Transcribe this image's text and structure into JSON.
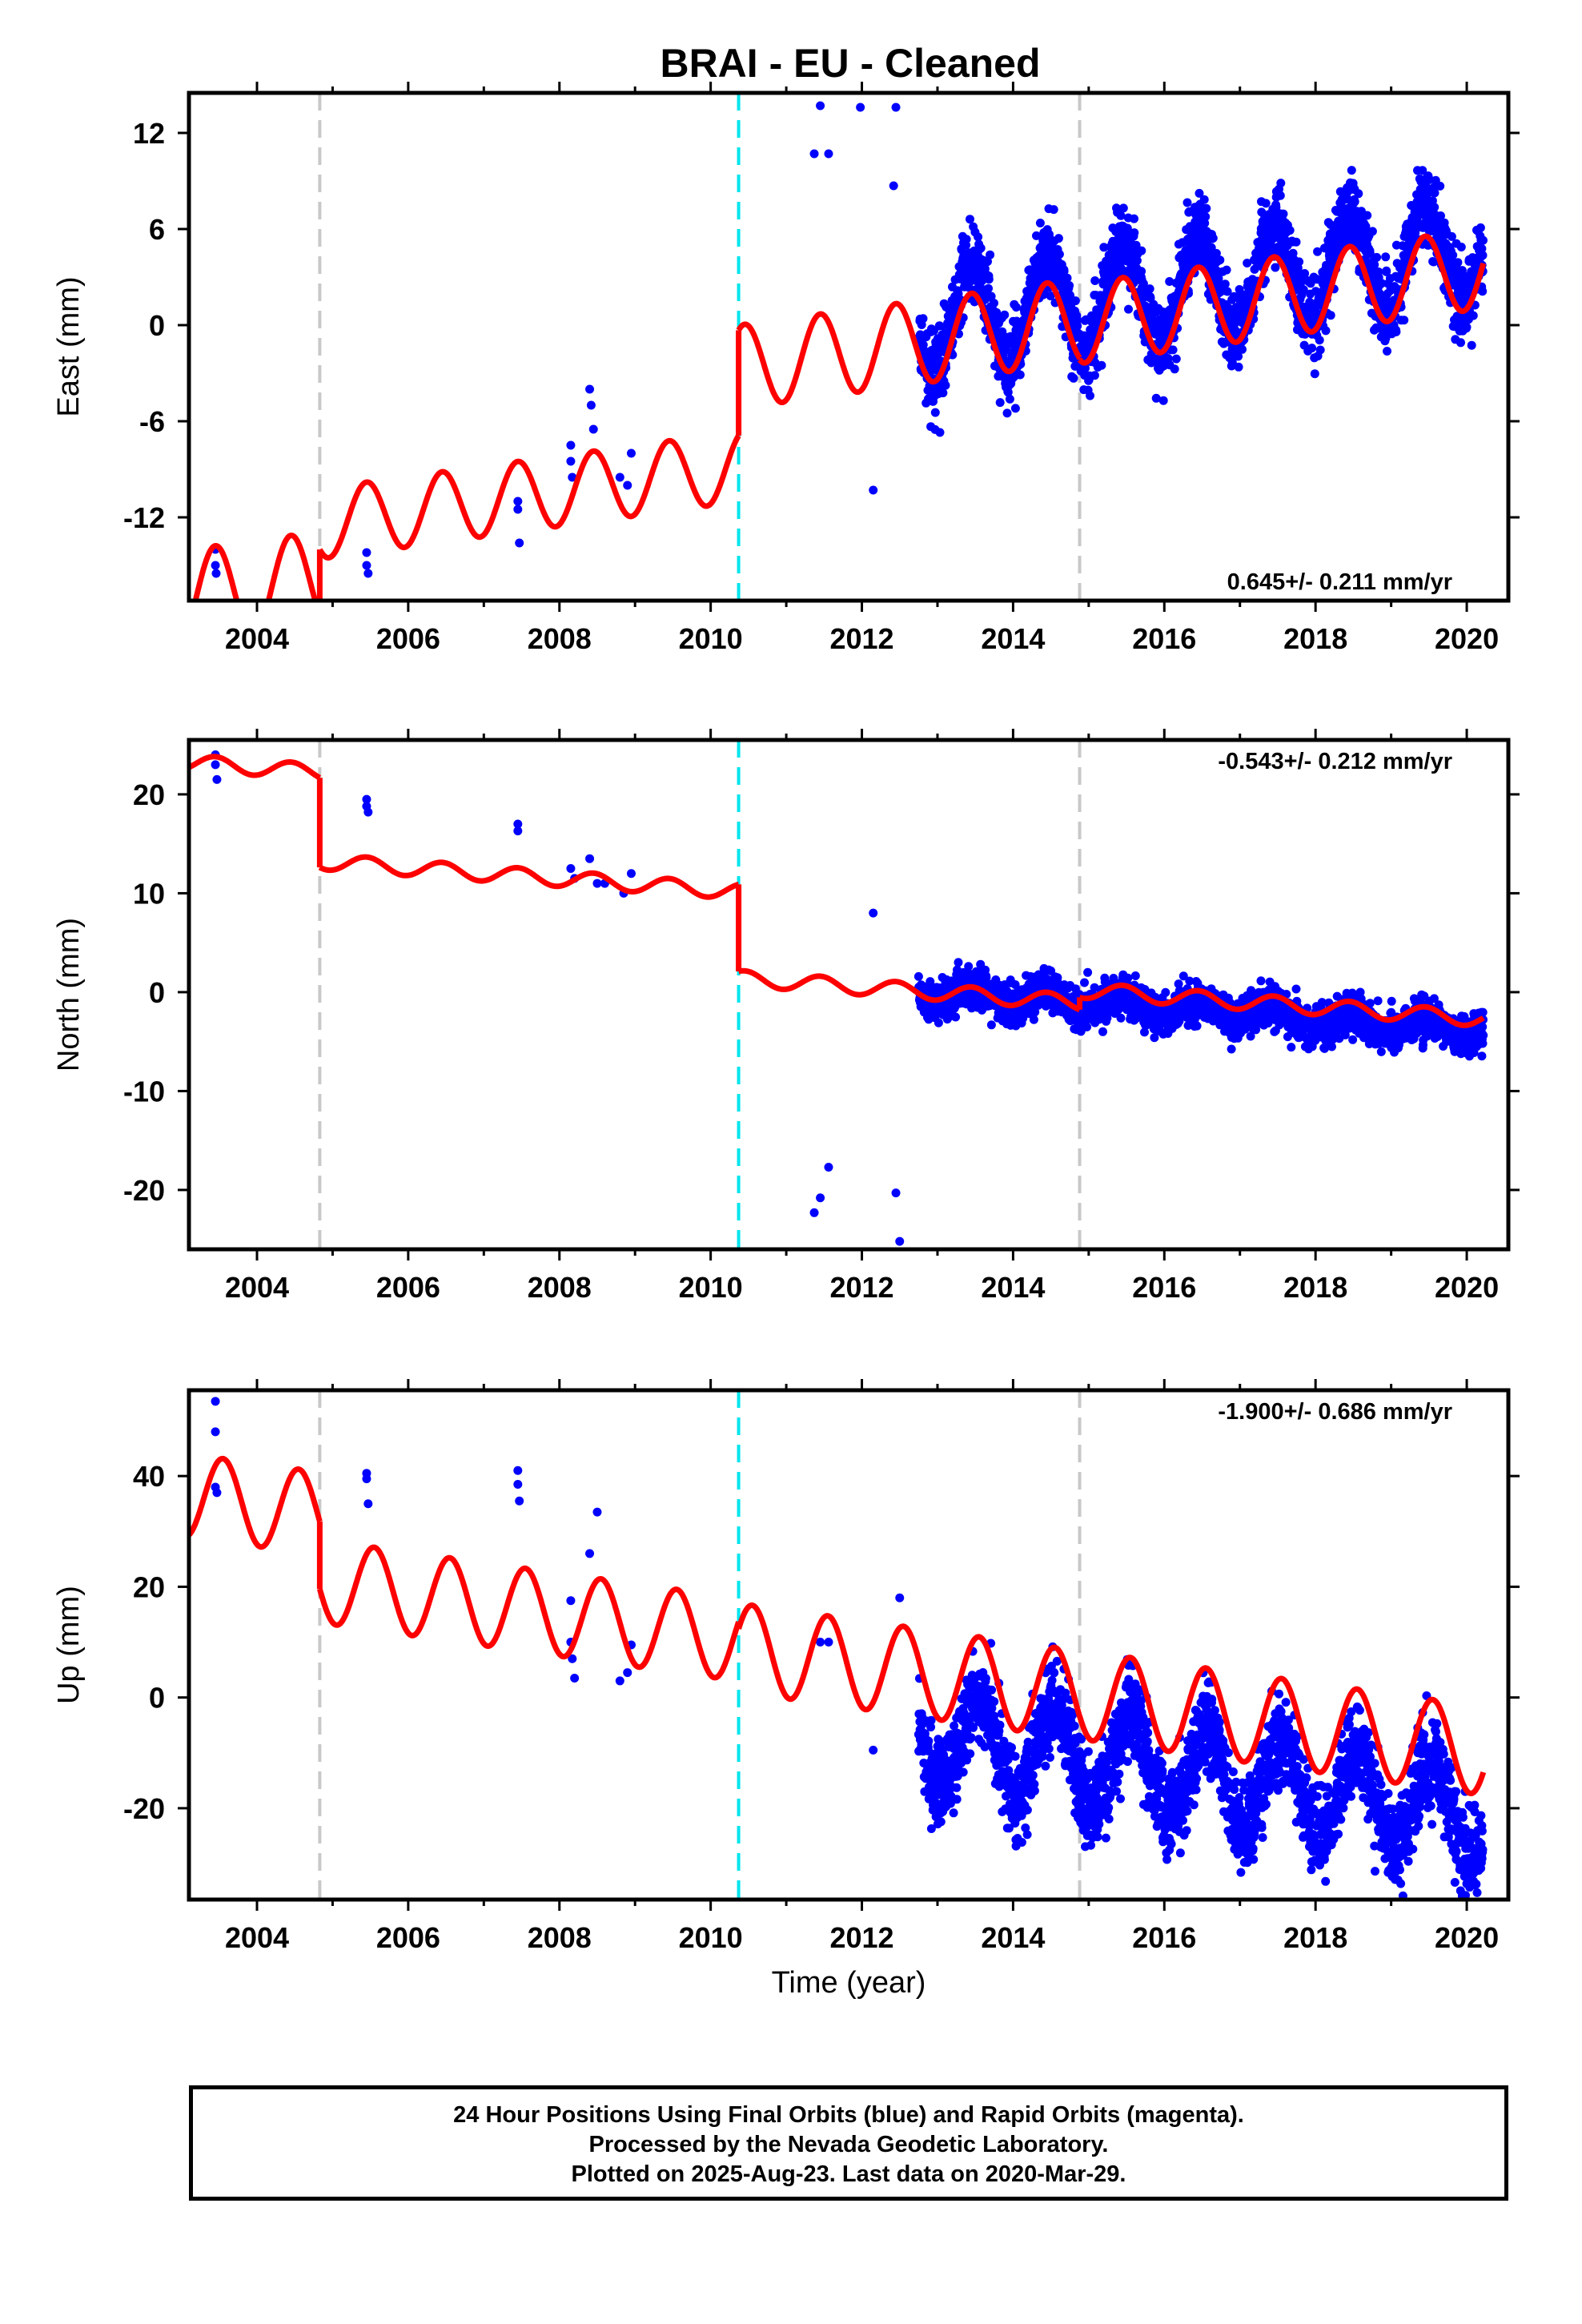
{
  "title": "BRAI  - EU - Cleaned",
  "x_axis_label": "Time (year)",
  "footer_lines": [
    "24 Hour Positions Using Final Orbits (blue) and Rapid Orbits (magenta).",
    "Processed by the Nevada Geodetic Laboratory.",
    "Plotted on 2025-Aug-23. Last data on 2020-Mar-29."
  ],
  "colors": {
    "data": "#0000ff",
    "model": "#ff0000",
    "offset_equipment": "#c8c8c8",
    "offset_earthquake": "#00e5ee"
  },
  "chart_data": [
    {
      "type": "scatter",
      "name": "East",
      "ylabel": "East (mm)",
      "rate_label": "0.645+/- 0.211 mm/yr",
      "xlim": [
        2003.1,
        2020.55
      ],
      "ylim": [
        -17.2,
        14.5
      ],
      "yticks": [
        -12,
        -6,
        0,
        6,
        12
      ],
      "ytick_labels": [
        "-12",
        "-6",
        "0",
        "6",
        "12"
      ],
      "xticks": [
        2004,
        2006,
        2008,
        2010,
        2012,
        2014,
        2016,
        2018,
        2020
      ],
      "xtick_labels": [
        "2004",
        "2006",
        "2008",
        "2010",
        "2012",
        "2014",
        "2016",
        "2018",
        "2020"
      ],
      "offsets_equipment": [
        2004.83,
        2014.88
      ],
      "offsets_earthquake": [
        2010.37
      ],
      "sparse_points": [
        [
          2003.45,
          -14.0
        ],
        [
          2003.45,
          -15.0
        ],
        [
          2003.46,
          -15.5
        ],
        [
          2005.45,
          -14.2
        ],
        [
          2005.45,
          -15.0
        ],
        [
          2005.47,
          -15.5
        ],
        [
          2007.45,
          -11.0
        ],
        [
          2007.45,
          -11.5
        ],
        [
          2007.47,
          -13.6
        ],
        [
          2008.15,
          -7.5
        ],
        [
          2008.15,
          -8.5
        ],
        [
          2008.17,
          -9.5
        ],
        [
          2008.4,
          -4.0
        ],
        [
          2008.42,
          -5.0
        ],
        [
          2008.45,
          -6.5
        ],
        [
          2008.8,
          -9.5
        ],
        [
          2008.9,
          -10.0
        ],
        [
          2008.95,
          -8.0
        ],
        [
          2011.45,
          13.7
        ],
        [
          2011.37,
          10.7
        ],
        [
          2011.56,
          10.7
        ],
        [
          2011.98,
          13.6
        ],
        [
          2012.45,
          13.6
        ],
        [
          2012.42,
          8.7
        ],
        [
          2012.15,
          -10.3
        ]
      ],
      "dense_data": {
        "start": 2012.75,
        "end": 2020.22,
        "offset": 0.1,
        "rate": 0.645,
        "amp": 3.2,
        "phase_peak": 0.45,
        "noise": 1.2
      },
      "model_segments": [
        {
          "start": 2003.1,
          "end": 2004.83,
          "offset": -17.0,
          "rate": 0.645,
          "amp": 3.0,
          "phase_peak": 0.45
        },
        {
          "start": 2004.83,
          "end": 2010.37,
          "offset": -12.4,
          "rate": 0.645,
          "amp": 2.2,
          "phase_peak": 0.45
        },
        {
          "start": 2010.37,
          "end": 2014.88,
          "offset": -2.6,
          "rate": 0.645,
          "amp": 2.6,
          "phase_peak": 0.45
        },
        {
          "start": 2014.88,
          "end": 2020.22,
          "offset": 0.1,
          "rate": 0.645,
          "amp": 2.5,
          "phase_peak": 0.45
        }
      ]
    },
    {
      "type": "scatter",
      "name": "North",
      "ylabel": "North (mm)",
      "rate_label": "-0.543+/- 0.212 mm/yr",
      "xlim": [
        2003.1,
        2020.55
      ],
      "ylim": [
        -26.0,
        25.5
      ],
      "yticks": [
        -20,
        -10,
        0,
        10,
        20
      ],
      "ytick_labels": [
        "-20",
        "-10",
        "0",
        "10",
        "20"
      ],
      "xticks": [
        2004,
        2006,
        2008,
        2010,
        2012,
        2014,
        2016,
        2018,
        2020
      ],
      "xtick_labels": [
        "2004",
        "2006",
        "2008",
        "2010",
        "2012",
        "2014",
        "2016",
        "2018",
        "2020"
      ],
      "offsets_equipment": [
        2004.83,
        2014.88
      ],
      "offsets_earthquake": [
        2010.37
      ],
      "sparse_points": [
        [
          2003.45,
          24.0
        ],
        [
          2003.45,
          23.0
        ],
        [
          2003.47,
          21.5
        ],
        [
          2005.45,
          19.5
        ],
        [
          2005.45,
          18.8
        ],
        [
          2005.47,
          18.2
        ],
        [
          2007.45,
          17.0
        ],
        [
          2007.45,
          16.3
        ],
        [
          2008.15,
          12.5
        ],
        [
          2008.2,
          11.5
        ],
        [
          2008.4,
          13.5
        ],
        [
          2008.5,
          11.0
        ],
        [
          2008.6,
          11.0
        ],
        [
          2008.85,
          10.0
        ],
        [
          2008.95,
          12.0
        ],
        [
          2011.37,
          -22.3
        ],
        [
          2011.45,
          -20.8
        ],
        [
          2011.56,
          -17.7
        ],
        [
          2012.15,
          8.0
        ],
        [
          2012.45,
          -20.3
        ],
        [
          2012.5,
          -25.2
        ]
      ],
      "dense_data": {
        "start": 2012.75,
        "end": 2020.22,
        "offset": 0.2,
        "rate": -0.543,
        "amp": 0.8,
        "phase_peak": 0.45,
        "noise": 1.0
      },
      "model_segments": [
        {
          "start": 2003.1,
          "end": 2004.83,
          "offset": 23.2,
          "rate": -0.543,
          "amp": 0.8,
          "phase_peak": 0.45
        },
        {
          "start": 2004.83,
          "end": 2010.37,
          "offset": 13.2,
          "rate": -0.543,
          "amp": 0.8,
          "phase_peak": 0.45
        },
        {
          "start": 2010.37,
          "end": 2014.88,
          "offset": 1.4,
          "rate": -0.543,
          "amp": 0.8,
          "phase_peak": 0.45
        },
        {
          "start": 2014.88,
          "end": 2020.22,
          "offset": 0.2,
          "rate": -0.543,
          "amp": 0.8,
          "phase_peak": 0.45
        }
      ]
    },
    {
      "type": "scatter",
      "name": "Up",
      "ylabel": "Up (mm)",
      "rate_label": "-1.900+/- 0.686 mm/yr",
      "xlim": [
        2003.1,
        2020.55
      ],
      "ylim": [
        -36.5,
        55.5
      ],
      "yticks": [
        -20,
        0,
        20,
        40
      ],
      "ytick_labels": [
        "-20",
        "0",
        "20",
        "40"
      ],
      "xticks": [
        2004,
        2006,
        2008,
        2010,
        2012,
        2014,
        2016,
        2018,
        2020
      ],
      "xtick_labels": [
        "2004",
        "2006",
        "2008",
        "2010",
        "2012",
        "2014",
        "2016",
        "2018",
        "2020"
      ],
      "offsets_equipment": [
        2004.83,
        2014.88
      ],
      "offsets_earthquake": [
        2010.37
      ],
      "sparse_points": [
        [
          2003.45,
          53.5
        ],
        [
          2003.45,
          48.0
        ],
        [
          2003.45,
          38.0
        ],
        [
          2003.47,
          37.0
        ],
        [
          2005.45,
          40.5
        ],
        [
          2005.45,
          39.5
        ],
        [
          2005.47,
          35.0
        ],
        [
          2007.45,
          41.0
        ],
        [
          2007.45,
          38.5
        ],
        [
          2007.47,
          35.5
        ],
        [
          2008.15,
          17.5
        ],
        [
          2008.15,
          10.0
        ],
        [
          2008.17,
          7.0
        ],
        [
          2008.2,
          3.5
        ],
        [
          2008.4,
          26.0
        ],
        [
          2008.5,
          33.5
        ],
        [
          2008.8,
          3.0
        ],
        [
          2008.9,
          4.5
        ],
        [
          2008.95,
          9.5
        ],
        [
          2011.45,
          10.0
        ],
        [
          2011.56,
          10.0
        ],
        [
          2012.15,
          -9.5
        ],
        [
          2012.5,
          18.0
        ]
      ],
      "dense_data": {
        "start": 2012.75,
        "end": 2020.22,
        "offset": -7.0,
        "rate": -1.9,
        "amp": 8.5,
        "phase_peak": 0.55,
        "noise": 4.0
      },
      "model_segments": [
        {
          "start": 2003.1,
          "end": 2004.83,
          "offset": 36.5,
          "rate": -1.9,
          "amp": 7.5,
          "phase_peak": 0.55
        },
        {
          "start": 2004.83,
          "end": 2010.37,
          "offset": 21.0,
          "rate": -1.9,
          "amp": 7.5,
          "phase_peak": 0.55
        },
        {
          "start": 2010.37,
          "end": 2014.88,
          "offset": 9.0,
          "rate": -1.9,
          "amp": 8.0,
          "phase_peak": 0.55
        },
        {
          "start": 2014.88,
          "end": 2020.22,
          "offset": 0.5,
          "rate": -1.9,
          "amp": 8.0,
          "phase_peak": 0.55
        }
      ]
    }
  ]
}
